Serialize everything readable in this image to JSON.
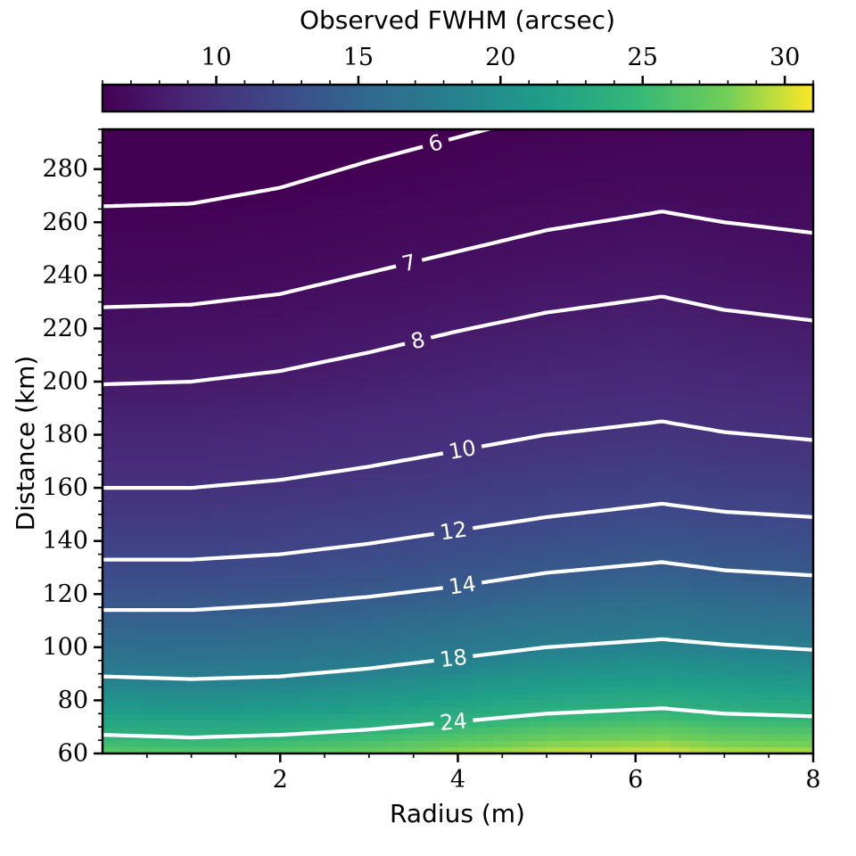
{
  "chart_data": {
    "type": "heatmap",
    "xlabel": "Radius (m)",
    "ylabel": "Distance (km)",
    "xlim": [
      0,
      8
    ],
    "ylim": [
      60,
      295
    ],
    "x_ticks": [
      2,
      4,
      6,
      8
    ],
    "y_ticks": [
      60,
      80,
      100,
      120,
      140,
      160,
      180,
      200,
      220,
      240,
      260,
      280
    ],
    "colorbar": {
      "label": "Observed FWHM (arcsec)",
      "range": [
        6,
        31
      ],
      "ticks": [
        10,
        15,
        20,
        25,
        30
      ],
      "colormap": "viridis",
      "position": "top"
    },
    "contours": [
      {
        "level": 6,
        "label": "6",
        "x": [
          0,
          1,
          2,
          3,
          4,
          5,
          6.3
        ],
        "y": [
          266,
          267,
          273,
          283,
          292,
          301,
          310
        ],
        "label_x": 3.75
      },
      {
        "level": 7,
        "label": "7",
        "x": [
          0,
          1,
          2,
          3,
          4,
          5,
          6.3,
          7,
          8
        ],
        "y": [
          228,
          229,
          233,
          241,
          249,
          257,
          264,
          260,
          256
        ],
        "label_x": 3.45
      },
      {
        "level": 8,
        "label": "8",
        "x": [
          0,
          1,
          2,
          3,
          4,
          5,
          6.3,
          7,
          8
        ],
        "y": [
          199,
          200,
          204,
          211,
          219,
          226,
          232,
          227,
          223
        ],
        "label_x": 3.55
      },
      {
        "level": 10,
        "label": "10",
        "x": [
          0,
          1,
          2,
          3,
          4,
          5,
          6.3,
          7,
          8
        ],
        "y": [
          160,
          160,
          163,
          168,
          174,
          180,
          185,
          181,
          178
        ],
        "label_x": 4.05
      },
      {
        "level": 12,
        "label": "12",
        "x": [
          0,
          1,
          2,
          3,
          4,
          5,
          6.3,
          7,
          8
        ],
        "y": [
          133,
          133,
          135,
          139,
          144,
          149,
          154,
          151,
          149
        ],
        "label_x": 3.95
      },
      {
        "level": 14,
        "label": "14",
        "x": [
          0,
          1,
          2,
          3,
          4,
          5,
          6.3,
          7,
          8
        ],
        "y": [
          114,
          114,
          116,
          119,
          123,
          128,
          132,
          129,
          127
        ],
        "label_x": 4.05
      },
      {
        "level": 18,
        "label": "18",
        "x": [
          0,
          1,
          2,
          3,
          4,
          5,
          6.3,
          7,
          8
        ],
        "y": [
          89,
          88,
          89,
          92,
          96,
          100,
          103,
          101,
          99
        ],
        "label_x": 3.95
      },
      {
        "level": 24,
        "label": "24",
        "x": [
          0,
          1,
          2,
          3,
          4,
          5,
          6.3,
          7,
          8
        ],
        "y": [
          67,
          66,
          67,
          69,
          72,
          75,
          77,
          75,
          74
        ],
        "label_x": 3.95
      }
    ]
  }
}
